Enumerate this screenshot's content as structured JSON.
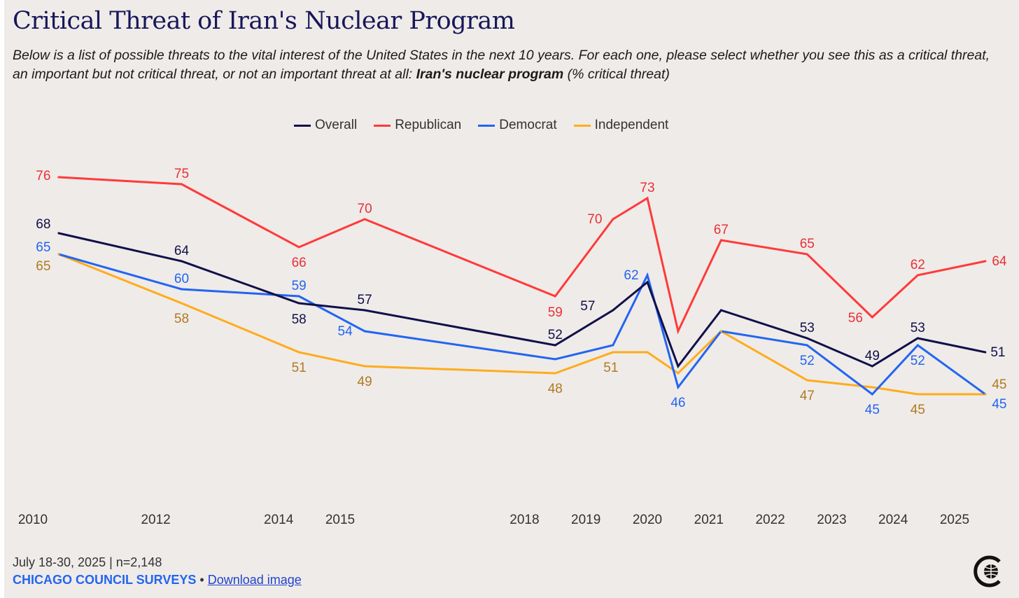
{
  "title": "Critical Threat of Iran's Nuclear Program",
  "subtitle_main": "Below is a list of possible threats to the vital interest of the United States in the next 10 years. For each one, please select whether you see this as a critical threat, an important but not critical threat, or not an important threat at all: ",
  "subtitle_bold": "Iran's nuclear program",
  "subtitle_end": " (% critical threat)",
  "footer": {
    "date_n": "July 18-30, 2025 | n=2,148",
    "brand": "CHICAGO COUNCIL SURVEYS",
    "separator": "•",
    "download": "Download image"
  },
  "chart_data": {
    "type": "line",
    "title": "Critical Threat of Iran's Nuclear Program",
    "xlabel": "",
    "ylabel": "% critical threat",
    "x_ticks": [
      "2010",
      "2012",
      "2014",
      "2015",
      "2018",
      "2019",
      "2020",
      "2021",
      "2022",
      "2023",
      "2024",
      "2025"
    ],
    "x": [
      2010.42,
      2012.42,
      2014.33,
      2015.4,
      2018.5,
      2019.44,
      2020.0,
      2020.5,
      2021.2,
      2022.6,
      2023.66,
      2024.4,
      2025.5
    ],
    "ylim": [
      40,
      80
    ],
    "grid": false,
    "legend": "top-center",
    "series": [
      {
        "name": "Overall",
        "color": "#10104a",
        "label_color": "#10104a",
        "values": [
          68,
          64,
          58,
          57,
          52,
          57,
          61,
          49,
          57,
          53,
          49,
          53,
          51
        ],
        "labeled": [
          true,
          true,
          true,
          true,
          true,
          true,
          false,
          false,
          false,
          true,
          true,
          true,
          true
        ]
      },
      {
        "name": "Republican",
        "color": "#ff3a3a",
        "label_color": "#e8303a",
        "values": [
          76,
          75,
          66,
          70,
          59,
          70,
          73,
          54,
          67,
          65,
          56,
          62,
          64
        ],
        "labeled": [
          true,
          true,
          true,
          true,
          true,
          true,
          true,
          false,
          true,
          true,
          true,
          true,
          true
        ]
      },
      {
        "name": "Democrat",
        "color": "#2265f2",
        "label_color": "#2265f2",
        "values": [
          65,
          60,
          59,
          54,
          50,
          52,
          62,
          46,
          54,
          52,
          45,
          52,
          45
        ],
        "labeled": [
          true,
          true,
          true,
          true,
          false,
          false,
          true,
          true,
          false,
          true,
          true,
          true,
          true
        ]
      },
      {
        "name": "Independent",
        "color": "#ffac1c",
        "label_color": "#b07a22",
        "values": [
          65,
          58,
          51,
          49,
          48,
          51,
          51,
          48,
          54,
          47,
          46,
          45,
          45
        ],
        "labeled": [
          true,
          true,
          true,
          true,
          true,
          true,
          false,
          false,
          false,
          true,
          false,
          true,
          true
        ]
      }
    ]
  }
}
